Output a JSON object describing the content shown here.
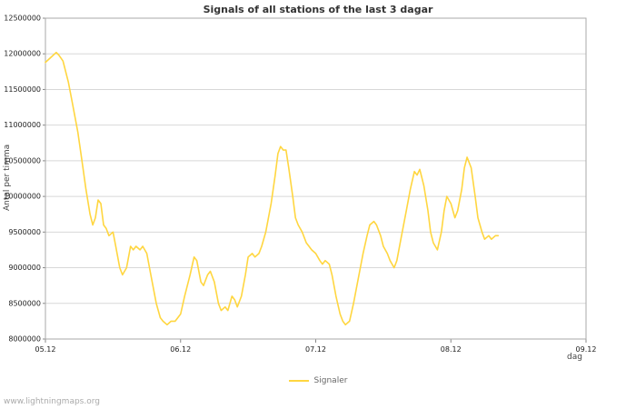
{
  "page": {
    "watermark": "www.lightningmaps.org"
  },
  "chart_data": {
    "type": "line",
    "title": "Signals of all stations of the last 3 dagar",
    "xlabel": "dag",
    "ylabel": "Antal per timma",
    "xlim": [
      0,
      4
    ],
    "ylim": [
      8000000,
      12500000
    ],
    "grid": "horizontal",
    "legend_position": "bottom-center",
    "background": "#ffffff",
    "grid_color": "#d8d8d8",
    "axis_color": "#aaaaaa",
    "y_ticks": [
      8000000,
      8500000,
      9000000,
      9500000,
      10000000,
      10500000,
      11000000,
      11500000,
      12000000,
      12500000
    ],
    "x_ticks": [
      {
        "pos": 0,
        "label": "05.12"
      },
      {
        "pos": 1,
        "label": "06.12"
      },
      {
        "pos": 2,
        "label": "07.12"
      },
      {
        "pos": 3,
        "label": "08.12"
      },
      {
        "pos": 4,
        "label": "09.12"
      }
    ],
    "series": [
      {
        "name": "Signaler",
        "color": "#ffd640",
        "points": [
          [
            0.0,
            11880000
          ],
          [
            0.04,
            11950000
          ],
          [
            0.08,
            12020000
          ],
          [
            0.1,
            11980000
          ],
          [
            0.13,
            11900000
          ],
          [
            0.17,
            11600000
          ],
          [
            0.2,
            11300000
          ],
          [
            0.24,
            10900000
          ],
          [
            0.27,
            10500000
          ],
          [
            0.3,
            10100000
          ],
          [
            0.33,
            9750000
          ],
          [
            0.35,
            9600000
          ],
          [
            0.37,
            9700000
          ],
          [
            0.39,
            9950000
          ],
          [
            0.41,
            9900000
          ],
          [
            0.43,
            9600000
          ],
          [
            0.45,
            9550000
          ],
          [
            0.47,
            9450000
          ],
          [
            0.5,
            9500000
          ],
          [
            0.52,
            9300000
          ],
          [
            0.55,
            9000000
          ],
          [
            0.57,
            8900000
          ],
          [
            0.6,
            9000000
          ],
          [
            0.63,
            9300000
          ],
          [
            0.65,
            9250000
          ],
          [
            0.67,
            9300000
          ],
          [
            0.7,
            9250000
          ],
          [
            0.72,
            9300000
          ],
          [
            0.75,
            9200000
          ],
          [
            0.78,
            8900000
          ],
          [
            0.82,
            8500000
          ],
          [
            0.85,
            8300000
          ],
          [
            0.87,
            8250000
          ],
          [
            0.9,
            8200000
          ],
          [
            0.93,
            8250000
          ],
          [
            0.96,
            8250000
          ],
          [
            1.0,
            8350000
          ],
          [
            1.03,
            8600000
          ],
          [
            1.07,
            8900000
          ],
          [
            1.1,
            9150000
          ],
          [
            1.12,
            9100000
          ],
          [
            1.15,
            8800000
          ],
          [
            1.17,
            8750000
          ],
          [
            1.2,
            8900000
          ],
          [
            1.22,
            8950000
          ],
          [
            1.25,
            8800000
          ],
          [
            1.28,
            8500000
          ],
          [
            1.3,
            8400000
          ],
          [
            1.33,
            8450000
          ],
          [
            1.35,
            8400000
          ],
          [
            1.38,
            8600000
          ],
          [
            1.4,
            8550000
          ],
          [
            1.42,
            8450000
          ],
          [
            1.45,
            8600000
          ],
          [
            1.48,
            8900000
          ],
          [
            1.5,
            9150000
          ],
          [
            1.53,
            9200000
          ],
          [
            1.55,
            9150000
          ],
          [
            1.58,
            9200000
          ],
          [
            1.6,
            9300000
          ],
          [
            1.63,
            9500000
          ],
          [
            1.67,
            9900000
          ],
          [
            1.7,
            10300000
          ],
          [
            1.72,
            10600000
          ],
          [
            1.74,
            10700000
          ],
          [
            1.76,
            10650000
          ],
          [
            1.78,
            10650000
          ],
          [
            1.8,
            10400000
          ],
          [
            1.83,
            10000000
          ],
          [
            1.85,
            9700000
          ],
          [
            1.87,
            9600000
          ],
          [
            1.9,
            9500000
          ],
          [
            1.93,
            9350000
          ],
          [
            1.95,
            9300000
          ],
          [
            1.97,
            9250000
          ],
          [
            2.0,
            9200000
          ],
          [
            2.03,
            9100000
          ],
          [
            2.05,
            9050000
          ],
          [
            2.07,
            9100000
          ],
          [
            2.1,
            9050000
          ],
          [
            2.12,
            8900000
          ],
          [
            2.15,
            8600000
          ],
          [
            2.18,
            8350000
          ],
          [
            2.2,
            8250000
          ],
          [
            2.22,
            8200000
          ],
          [
            2.25,
            8250000
          ],
          [
            2.28,
            8500000
          ],
          [
            2.32,
            8900000
          ],
          [
            2.35,
            9200000
          ],
          [
            2.38,
            9450000
          ],
          [
            2.4,
            9600000
          ],
          [
            2.43,
            9650000
          ],
          [
            2.45,
            9600000
          ],
          [
            2.48,
            9450000
          ],
          [
            2.5,
            9300000
          ],
          [
            2.53,
            9200000
          ],
          [
            2.55,
            9100000
          ],
          [
            2.58,
            9000000
          ],
          [
            2.6,
            9100000
          ],
          [
            2.63,
            9400000
          ],
          [
            2.67,
            9800000
          ],
          [
            2.7,
            10100000
          ],
          [
            2.73,
            10350000
          ],
          [
            2.75,
            10300000
          ],
          [
            2.77,
            10380000
          ],
          [
            2.8,
            10150000
          ],
          [
            2.83,
            9800000
          ],
          [
            2.85,
            9500000
          ],
          [
            2.87,
            9350000
          ],
          [
            2.9,
            9250000
          ],
          [
            2.93,
            9500000
          ],
          [
            2.95,
            9800000
          ],
          [
            2.97,
            10000000
          ],
          [
            3.0,
            9900000
          ],
          [
            3.03,
            9700000
          ],
          [
            3.05,
            9800000
          ],
          [
            3.08,
            10100000
          ],
          [
            3.1,
            10400000
          ],
          [
            3.12,
            10550000
          ],
          [
            3.15,
            10400000
          ],
          [
            3.18,
            10000000
          ],
          [
            3.2,
            9700000
          ],
          [
            3.23,
            9500000
          ],
          [
            3.25,
            9400000
          ],
          [
            3.28,
            9450000
          ],
          [
            3.3,
            9400000
          ],
          [
            3.33,
            9450000
          ],
          [
            3.35,
            9450000
          ]
        ]
      }
    ]
  }
}
